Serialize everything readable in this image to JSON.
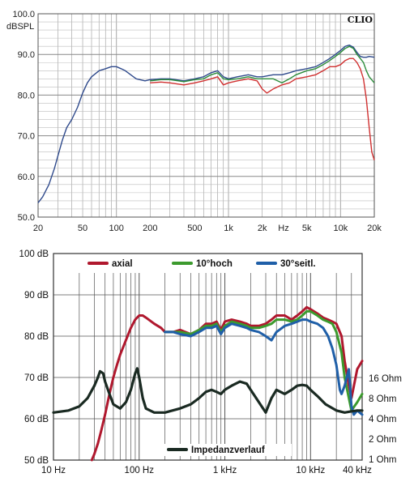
{
  "chart_data": [
    {
      "type": "line",
      "brand": "CLIO",
      "ylabel": "dBSPL",
      "ylim": [
        50,
        100
      ],
      "xlim": [
        20,
        20000
      ],
      "xscale": "log",
      "grid": true,
      "y_ticks": [
        "100.0",
        "90.0",
        "80.0",
        "70.0",
        "60.0",
        "50.0"
      ],
      "y_tick_values": [
        100,
        90,
        80,
        70,
        60,
        50
      ],
      "x_ticks": [
        "20",
        "50",
        "100",
        "200",
        "500",
        "1k",
        "2k",
        "Hz",
        "5k",
        "10k",
        "20k"
      ],
      "x_tick_values": [
        20,
        50,
        100,
        200,
        500,
        1000,
        2000,
        3100,
        5000,
        10000,
        20000
      ],
      "colors": [
        "#2f4a8c",
        "#2b8c3a",
        "#d03030"
      ],
      "series": [
        {
          "color": "#2f4a8c",
          "x": [
            20,
            22,
            25,
            28,
            30,
            33,
            36,
            40,
            45,
            50,
            55,
            60,
            70,
            80,
            90,
            100,
            110,
            120,
            150,
            180,
            200,
            250,
            300,
            400,
            500,
            600,
            700,
            800,
            900,
            1000,
            1200,
            1500,
            1800,
            2000,
            2500,
            3000,
            3500,
            4000,
            5000,
            6000,
            7000,
            8000,
            9000,
            10000,
            11000,
            12000,
            13000,
            14000,
            15000,
            16000,
            17000,
            18000,
            20000
          ],
          "values": [
            53.5,
            55,
            58,
            62,
            65,
            69,
            72,
            74,
            77,
            80.5,
            83,
            84.5,
            86,
            86.5,
            87,
            87,
            86.5,
            86,
            84,
            83.5,
            83.8,
            84,
            84,
            83.5,
            84,
            84.5,
            85.5,
            86,
            84.5,
            84,
            84.5,
            85,
            84.5,
            84.5,
            85,
            85,
            85.5,
            86,
            86.5,
            87,
            88,
            89,
            90,
            91,
            92,
            92.3,
            91.8,
            90.5,
            89.5,
            89.3,
            89.3,
            89.5,
            89.3
          ]
        },
        {
          "color": "#2b8c3a",
          "x": [
            200,
            250,
            300,
            400,
            500,
            600,
            700,
            800,
            900,
            1000,
            1200,
            1500,
            1800,
            2000,
            2500,
            3000,
            3500,
            4000,
            5000,
            6000,
            7000,
            8000,
            9000,
            10000,
            11000,
            12000,
            13000,
            14000,
            15000,
            16000,
            17000,
            18000,
            20000
          ],
          "values": [
            83.5,
            83.8,
            83.8,
            83.3,
            83.8,
            84,
            85,
            85.5,
            84,
            83.8,
            84,
            84.5,
            84,
            84,
            84,
            83,
            84,
            85,
            86,
            86.5,
            87.5,
            88.5,
            89.5,
            90.5,
            91.5,
            92,
            91.5,
            90,
            89,
            88,
            86,
            84.5,
            83
          ]
        },
        {
          "color": "#d03030",
          "x": [
            200,
            250,
            300,
            400,
            500,
            600,
            700,
            800,
            900,
            1000,
            1200,
            1500,
            1800,
            2000,
            2200,
            2500,
            3000,
            3500,
            4000,
            5000,
            6000,
            7000,
            8000,
            9000,
            10000,
            11000,
            12000,
            13000,
            14000,
            15000,
            16000,
            17000,
            18000,
            19000,
            20000
          ],
          "values": [
            83,
            83.2,
            83,
            82.5,
            83,
            83.5,
            84,
            84.5,
            82.5,
            83,
            83.5,
            84,
            83.5,
            81.5,
            80.5,
            81.5,
            82.5,
            83,
            84,
            84.5,
            85,
            86,
            87,
            87,
            87.5,
            88.5,
            89,
            89,
            88,
            86.5,
            84,
            79,
            72,
            66,
            64
          ]
        }
      ]
    },
    {
      "type": "line",
      "ylim": [
        50,
        100
      ],
      "xlim": [
        10,
        40000
      ],
      "xscale": "log",
      "grid": true,
      "legend": "top",
      "y_ticks": [
        "100 dB",
        "90 dB",
        "80 dB",
        "70 dB",
        "60 dB",
        "50 dB"
      ],
      "y_tick_values": [
        100,
        90,
        80,
        70,
        60,
        50
      ],
      "x_ticks": [
        "10 Hz",
        "100 Hz",
        "1 kHz",
        "10 kHz",
        "40 kHz"
      ],
      "x_tick_values": [
        10,
        100,
        1000,
        10000,
        40000
      ],
      "right_ticks": [
        "16 Ohm",
        "8 Ohm",
        "4 Ohm",
        "2 Ohm",
        "1 Ohm"
      ],
      "right_tick_values": [
        16,
        8,
        4,
        2,
        1
      ],
      "right_scale": "log",
      "colors": [
        "#b0182e",
        "#3c9a2e",
        "#1f5fa8",
        "#1a2a22"
      ],
      "series": [
        {
          "name": "axial",
          "color": "#b0182e",
          "x": [
            28,
            30,
            33,
            36,
            40,
            45,
            50,
            55,
            60,
            70,
            80,
            90,
            100,
            110,
            120,
            150,
            180,
            200,
            250,
            300,
            400,
            500,
            600,
            700,
            800,
            900,
            1000,
            1200,
            1500,
            1800,
            2000,
            2500,
            3000,
            3500,
            4000,
            5000,
            6000,
            7000,
            8000,
            9000,
            10000,
            12000,
            14000,
            16000,
            18000,
            20000,
            23000,
            25000,
            28000,
            30000,
            35000,
            40000
          ],
          "values": [
            50,
            51.5,
            54,
            57,
            61,
            66,
            70,
            73,
            75.5,
            79,
            82,
            84,
            85,
            85,
            84.5,
            83,
            82,
            81,
            81,
            81.5,
            80.5,
            81.5,
            83,
            83,
            83.5,
            81.5,
            83.5,
            84,
            83.5,
            83,
            82.5,
            82.5,
            83,
            84,
            85,
            85,
            84,
            85,
            86,
            87,
            86.5,
            85.5,
            84.5,
            84,
            83.5,
            83,
            80,
            74,
            68,
            65,
            72,
            74
          ]
        },
        {
          "name": "10°hoch",
          "color": "#3c9a2e",
          "x": [
            200,
            250,
            300,
            400,
            500,
            600,
            700,
            800,
            900,
            1000,
            1200,
            1500,
            1800,
            2000,
            2500,
            3000,
            3500,
            4000,
            5000,
            6000,
            7000,
            8000,
            9000,
            10000,
            12000,
            14000,
            16000,
            18000,
            20000,
            23000,
            25000,
            28000,
            30000,
            35000,
            40000
          ],
          "values": [
            81,
            81,
            81,
            80.5,
            81.5,
            82.5,
            82.5,
            83,
            81,
            82.5,
            83.5,
            83,
            82.5,
            82,
            82,
            82.5,
            83,
            84,
            84,
            83.5,
            84,
            85,
            86,
            86,
            85,
            84,
            83.5,
            83,
            81,
            76,
            70,
            65,
            62,
            64,
            66
          ]
        },
        {
          "name": "30°seitl.",
          "color": "#1f5fa8",
          "x": [
            200,
            250,
            300,
            400,
            500,
            600,
            700,
            800,
            900,
            1000,
            1200,
            1500,
            1800,
            2000,
            2500,
            3000,
            3500,
            4000,
            5000,
            6000,
            7000,
            8000,
            9000,
            10000,
            12000,
            14000,
            16000,
            18000,
            20000,
            22000,
            23000,
            25000,
            28000,
            30000,
            32000,
            35000,
            40000
          ],
          "values": [
            81,
            81,
            80.5,
            80,
            81,
            82,
            82,
            82.5,
            80.5,
            82,
            83,
            82.5,
            82,
            81.5,
            81,
            80,
            79,
            81,
            82.5,
            83,
            83.5,
            84,
            84,
            83.5,
            83,
            82,
            80,
            77,
            73,
            67,
            66,
            68,
            72,
            63,
            61,
            62,
            61
          ]
        },
        {
          "name": "Impedanzverlauf",
          "color": "#1a2a22",
          "x": [
            10,
            15,
            20,
            25,
            30,
            33,
            35,
            38,
            40,
            45,
            50,
            60,
            70,
            80,
            90,
            95,
            100,
            110,
            120,
            150,
            200,
            300,
            400,
            500,
            600,
            700,
            800,
            900,
            1000,
            1200,
            1500,
            1800,
            2000,
            2500,
            3000,
            3500,
            4000,
            5000,
            6000,
            7000,
            8000,
            9000,
            10000,
            12000,
            15000,
            20000,
            25000,
            30000,
            35000,
            40000
          ],
          "values": [
            61.5,
            62,
            63,
            65,
            68,
            70,
            71.5,
            71,
            69,
            66,
            63.5,
            62.5,
            64,
            67,
            71,
            72.2,
            70,
            65,
            62.5,
            61.5,
            61.5,
            62.5,
            63.5,
            65,
            66.5,
            67,
            66.5,
            66,
            67,
            68,
            69,
            68.5,
            67,
            64,
            61.5,
            65,
            67,
            66,
            67,
            68,
            68.2,
            68,
            67,
            65.5,
            63.5,
            62,
            61.5,
            61.8,
            62,
            62
          ]
        }
      ]
    }
  ]
}
